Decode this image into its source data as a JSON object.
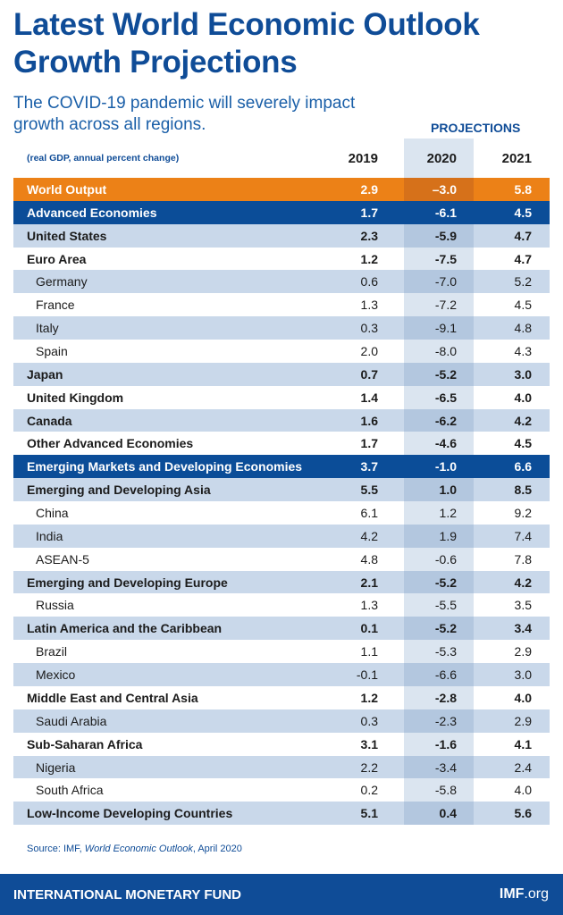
{
  "header": {
    "title_lines": [
      "Latest World Economic Outlook",
      "Growth Projections"
    ],
    "subtitle": "The COVID-19 pandemic will severely impact growth across all regions."
  },
  "table": {
    "projections_label": "PROJECTIONS",
    "units": "(real GDP, annual percent change)",
    "years": [
      "2019",
      "2020",
      "2021"
    ],
    "world": {
      "label": "World Output",
      "values": [
        "2.9",
        "–3.0",
        "5.8"
      ]
    },
    "groups": [
      {
        "label": "Advanced Economies",
        "values": [
          "1.7",
          "-6.1",
          "4.5"
        ],
        "regions": [
          {
            "label": "United States",
            "values": [
              "2.3",
              "-5.9",
              "4.7"
            ],
            "countries": []
          },
          {
            "label": "Euro Area",
            "values": [
              "1.2",
              "-7.5",
              "4.7"
            ],
            "countries": [
              {
                "label": "Germany",
                "values": [
                  "0.6",
                  "-7.0",
                  "5.2"
                ]
              },
              {
                "label": "France",
                "values": [
                  "1.3",
                  "-7.2",
                  "4.5"
                ]
              },
              {
                "label": "Italy",
                "values": [
                  "0.3",
                  "-9.1",
                  "4.8"
                ]
              },
              {
                "label": "Spain",
                "values": [
                  "2.0",
                  "-8.0",
                  "4.3"
                ]
              }
            ]
          },
          {
            "label": "Japan",
            "values": [
              "0.7",
              "-5.2",
              "3.0"
            ],
            "countries": []
          },
          {
            "label": "United Kingdom",
            "values": [
              "1.4",
              "-6.5",
              "4.0"
            ],
            "countries": []
          },
          {
            "label": "Canada",
            "values": [
              "1.6",
              "-6.2",
              "4.2"
            ],
            "countries": []
          },
          {
            "label": "Other Advanced Economies",
            "values": [
              "1.7",
              "-4.6",
              "4.5"
            ],
            "countries": []
          }
        ]
      },
      {
        "label": "Emerging Markets and Developing Economies",
        "values": [
          "3.7",
          "-1.0",
          "6.6"
        ],
        "regions": [
          {
            "label": "Emerging and Developing Asia",
            "values": [
              "5.5",
              "1.0",
              "8.5"
            ],
            "countries": [
              {
                "label": "China",
                "values": [
                  "6.1",
                  "1.2",
                  "9.2"
                ]
              },
              {
                "label": "India",
                "values": [
                  "4.2",
                  "1.9",
                  "7.4"
                ]
              },
              {
                "label": "ASEAN-5",
                "values": [
                  "4.8",
                  "-0.6",
                  "7.8"
                ]
              }
            ]
          },
          {
            "label": "Emerging and Developing Europe",
            "values": [
              "2.1",
              "-5.2",
              "4.2"
            ],
            "countries": [
              {
                "label": "Russia",
                "values": [
                  "1.3",
                  "-5.5",
                  "3.5"
                ]
              }
            ]
          },
          {
            "label": "Latin America and the Caribbean",
            "values": [
              "0.1",
              "-5.2",
              "3.4"
            ],
            "countries": [
              {
                "label": "Brazil",
                "values": [
                  "1.1",
                  "-5.3",
                  "2.9"
                ]
              },
              {
                "label": "Mexico",
                "values": [
                  "-0.1",
                  "-6.6",
                  "3.0"
                ]
              }
            ]
          },
          {
            "label": "Middle East and Central Asia",
            "values": [
              "1.2",
              "-2.8",
              "4.0"
            ],
            "countries": [
              {
                "label": "Saudi Arabia",
                "values": [
                  "0.3",
                  "-2.3",
                  "2.9"
                ]
              }
            ]
          },
          {
            "label": "Sub-Saharan Africa",
            "values": [
              "3.1",
              "-1.6",
              "4.1"
            ],
            "countries": [
              {
                "label": "Nigeria",
                "values": [
                  "2.2",
                  "-3.4",
                  "2.4"
                ]
              },
              {
                "label": "South Africa",
                "values": [
                  "0.2",
                  "-5.8",
                  "4.0"
                ]
              }
            ]
          },
          {
            "label": "Low-Income Developing Countries",
            "values": [
              "5.1",
              "0.4",
              "5.6"
            ],
            "countries": []
          }
        ]
      }
    ]
  },
  "source": {
    "prefix": "Source: IMF, ",
    "publication": "World Economic Outlook",
    "suffix": ", April 2020"
  },
  "footer": {
    "organization": "INTERNATIONAL MONETARY FUND",
    "site_bold": "IMF",
    "site_rest": ".org"
  }
}
